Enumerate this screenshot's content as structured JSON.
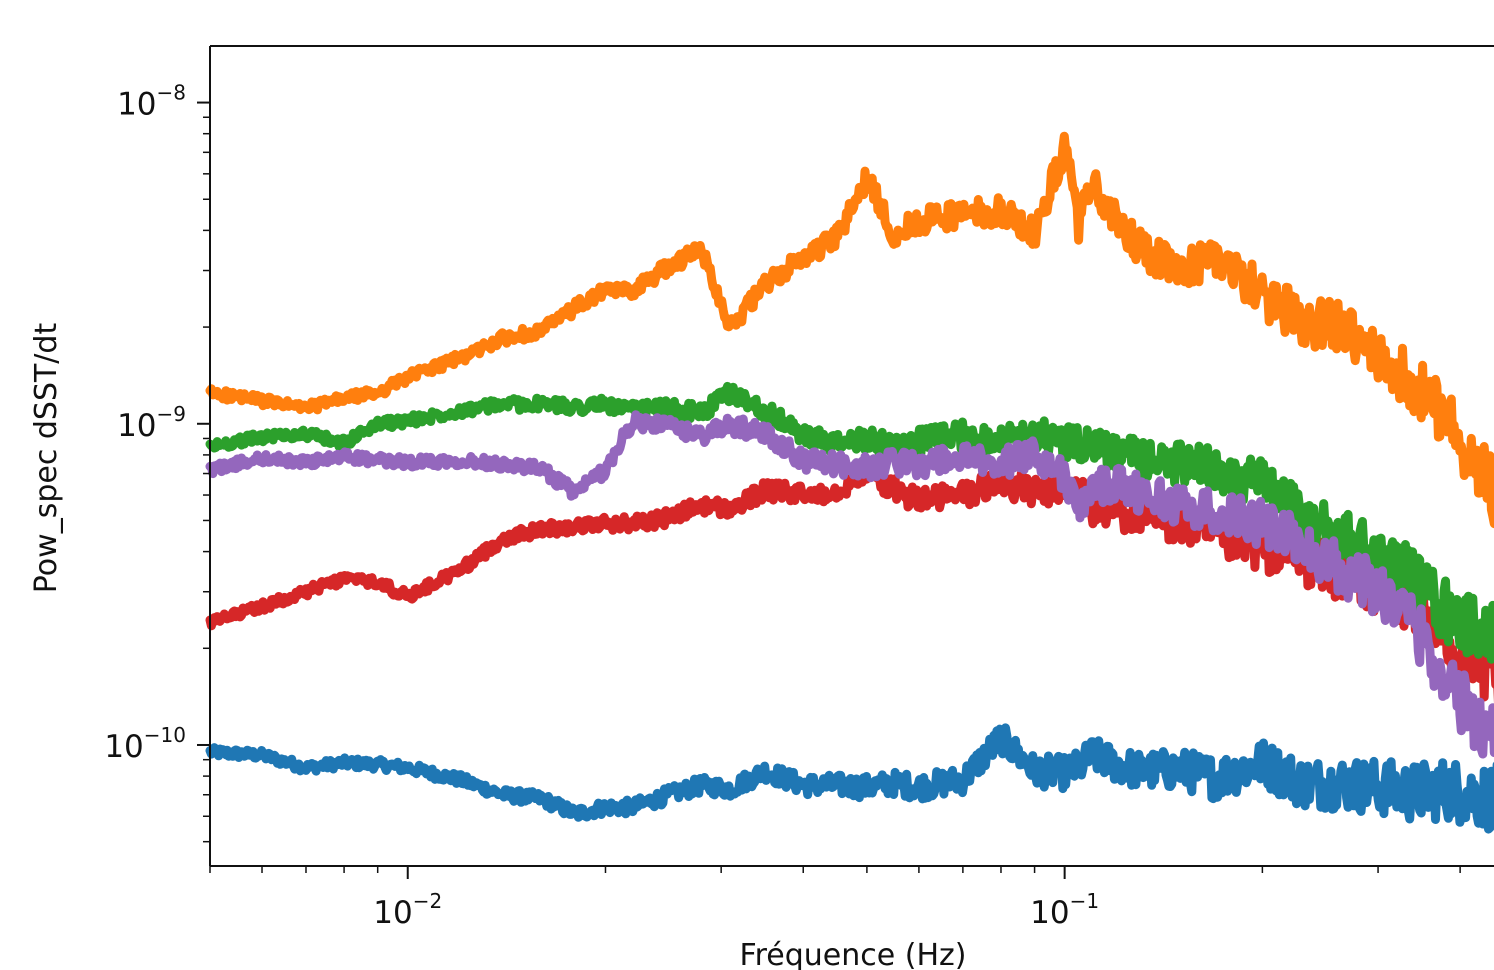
{
  "chart_data": {
    "type": "line",
    "title": "",
    "xlabel": "Fréquence (Hz)",
    "ylabel": "Pow_spec dSST/dt",
    "xscale": "log",
    "yscale": "log",
    "xlim": [
      0.005,
      0.46
    ],
    "ylim": [
      4.2e-11,
      1.5e-08
    ],
    "grid": false,
    "x_ticks": [
      {
        "value": 0.01,
        "base": "10",
        "exp": "−2"
      },
      {
        "value": 0.1,
        "base": "10",
        "exp": "−1"
      }
    ],
    "y_ticks": [
      {
        "value": 1e-08,
        "base": "10",
        "exp": "−8"
      },
      {
        "value": 1e-09,
        "base": "10",
        "exp": "−9"
      },
      {
        "value": 1e-10,
        "base": "10",
        "exp": "−10"
      }
    ],
    "x": [
      0.005,
      0.006,
      0.007,
      0.008,
      0.009,
      0.01,
      0.012,
      0.014,
      0.016,
      0.018,
      0.02,
      0.022,
      0.025,
      0.028,
      0.031,
      0.035,
      0.04,
      0.045,
      0.05,
      0.055,
      0.06,
      0.07,
      0.08,
      0.09,
      0.1,
      0.105,
      0.11,
      0.12,
      0.13,
      0.15,
      0.17,
      0.2,
      0.23,
      0.26,
      0.3,
      0.34,
      0.38,
      0.42,
      0.46
    ],
    "series": [
      {
        "color": "#1f77b4",
        "values": [
          9.5e-11,
          9.3e-11,
          8.5e-11,
          8.8e-11,
          8.7e-11,
          8.5e-11,
          7.8e-11,
          7e-11,
          6.8e-11,
          6.1e-11,
          6.4e-11,
          6.4e-11,
          7e-11,
          7.5e-11,
          7.3e-11,
          8.3e-11,
          7.5e-11,
          7.5e-11,
          7.4e-11,
          7.6e-11,
          7.4e-11,
          7.8e-11,
          1.05e-10,
          8.3e-11,
          8.2e-11,
          8.5e-11,
          9.3e-11,
          8.7e-11,
          8.3e-11,
          8.4e-11,
          7.9e-11,
          8.8e-11,
          7.6e-11,
          7.6e-11,
          7.4e-11,
          7.1e-11,
          7.3e-11,
          7e-11,
          6.8e-11
        ]
      },
      {
        "color": "#ff7f0e",
        "values": [
          1.25e-09,
          1.18e-09,
          1.12e-09,
          1.2e-09,
          1.25e-09,
          1.4e-09,
          1.6e-09,
          1.85e-09,
          1.95e-09,
          2.3e-09,
          2.6e-09,
          2.6e-09,
          3.1e-09,
          3.5e-09,
          2e-09,
          2.7e-09,
          3.3e-09,
          3.8e-09,
          5.8e-09,
          3.9e-09,
          4.3e-09,
          4.5e-09,
          4.6e-09,
          3.9e-09,
          7.2e-09,
          4.2e-09,
          5.6e-09,
          4.2e-09,
          3.6e-09,
          2.9e-09,
          3.4e-09,
          2.5e-09,
          2.1e-09,
          2e-09,
          1.6e-09,
          1.35e-09,
          1.05e-09,
          7.8e-10,
          5.8e-10
        ]
      },
      {
        "color": "#2ca02c",
        "values": [
          8.5e-10,
          9.1e-10,
          9.3e-10,
          8.7e-10,
          1e-09,
          1.02e-09,
          1.1e-09,
          1.15e-09,
          1.15e-09,
          1.13e-09,
          1.15e-09,
          1.1e-09,
          1.12e-09,
          1.08e-09,
          1.25e-09,
          1.1e-09,
          9.2e-10,
          8.6e-10,
          9e-10,
          8.5e-10,
          8.8e-10,
          9.2e-10,
          9e-10,
          9.3e-10,
          8.8e-10,
          8.6e-10,
          8.5e-10,
          8.1e-10,
          7.8e-10,
          7.5e-10,
          7.2e-10,
          6.5e-10,
          5.2e-10,
          4.5e-10,
          4e-10,
          3.3e-10,
          2.6e-10,
          2.3e-10,
          2.2e-10
        ]
      },
      {
        "color": "#d62728",
        "values": [
          2.4e-10,
          2.7e-10,
          3e-10,
          3.3e-10,
          3.2e-10,
          2.9e-10,
          3.5e-10,
          4.4e-10,
          4.7e-10,
          4.8e-10,
          4.9e-10,
          4.9e-10,
          5.1e-10,
          5.6e-10,
          5.4e-10,
          6.2e-10,
          6e-10,
          6.2e-10,
          7.2e-10,
          6.2e-10,
          5.8e-10,
          6e-10,
          6.6e-10,
          6.1e-10,
          6.4e-10,
          6.2e-10,
          5.4e-10,
          5.4e-10,
          5.1e-10,
          4.9e-10,
          4.4e-10,
          4.1e-10,
          3.8e-10,
          3.4e-10,
          3.1e-10,
          2.8e-10,
          2.2e-10,
          1.8e-10,
          1.6e-10
        ]
      },
      {
        "color": "#9467bd",
        "values": [
          7.2e-10,
          7.8e-10,
          7.6e-10,
          7.9e-10,
          7.7e-10,
          7.6e-10,
          7.7e-10,
          7.5e-10,
          7.2e-10,
          6.1e-10,
          7.2e-10,
          1.02e-09,
          9.8e-10,
          9.2e-10,
          9.9e-10,
          9.4e-10,
          7.7e-10,
          7.5e-10,
          7.3e-10,
          7.6e-10,
          7.5e-10,
          7.8e-10,
          7.5e-10,
          8.2e-10,
          6.8e-10,
          5.3e-10,
          6.4e-10,
          6.5e-10,
          6.1e-10,
          5.6e-10,
          5.3e-10,
          4.9e-10,
          4.2e-10,
          3.6e-10,
          3.1e-10,
          2.4e-10,
          1.6e-10,
          1.2e-10,
          1.1e-10
        ]
      }
    ]
  }
}
